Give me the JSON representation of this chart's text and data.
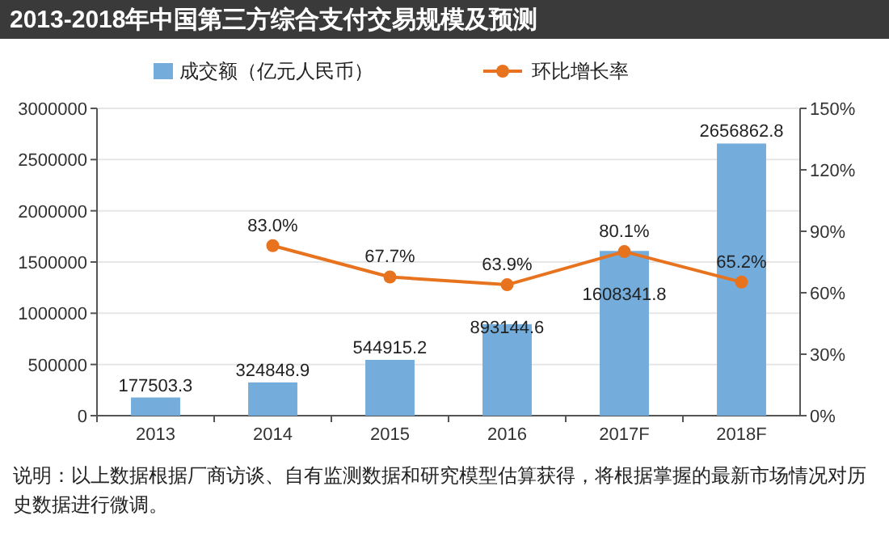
{
  "chart_data": {
    "type": "bar",
    "title": "2013-2018年中国第三方综合支付交易规模及预测",
    "categories": [
      "2013",
      "2014",
      "2015",
      "2016",
      "2017F",
      "2018F"
    ],
    "series": [
      {
        "name": "成交额（亿元人民币）",
        "color": "#74addc",
        "values": [
          177503.3,
          324848.9,
          544915.2,
          893144.6,
          1608341.8,
          2656862.8
        ],
        "value_labels": [
          "177503.3",
          "324848.9",
          "544915.2",
          "893144.6",
          "1608341.8",
          "2656862.8"
        ]
      },
      {
        "name": "环比增长率",
        "type": "line",
        "axis": "y2",
        "color": "#e8731e",
        "values": [
          null,
          83.0,
          67.7,
          63.9,
          80.1,
          65.2
        ],
        "value_labels": [
          null,
          "83.0%",
          "67.7%",
          "63.9%",
          "80.1%",
          "65.2%"
        ]
      }
    ],
    "ylim": [
      0,
      3000000
    ],
    "yticks": [
      0,
      500000,
      1000000,
      1500000,
      2000000,
      2500000,
      3000000
    ],
    "y2lim": [
      0,
      150
    ],
    "y2ticks": [
      {
        "value": 0,
        "label": "0%"
      },
      {
        "value": 30,
        "label": "30%"
      },
      {
        "value": 60,
        "label": "60%"
      },
      {
        "value": 90,
        "label": "90%"
      },
      {
        "value": 120,
        "label": "120%"
      },
      {
        "value": 150,
        "label": "150%"
      }
    ],
    "grid": "y",
    "legend": "top",
    "marker": "circle",
    "annotations": [
      "说明：以上数据根据厂商访谈、自有监测数据和研究模型估算获得，将根据掌握的最新市场情况对历史数据进行微调。"
    ]
  }
}
